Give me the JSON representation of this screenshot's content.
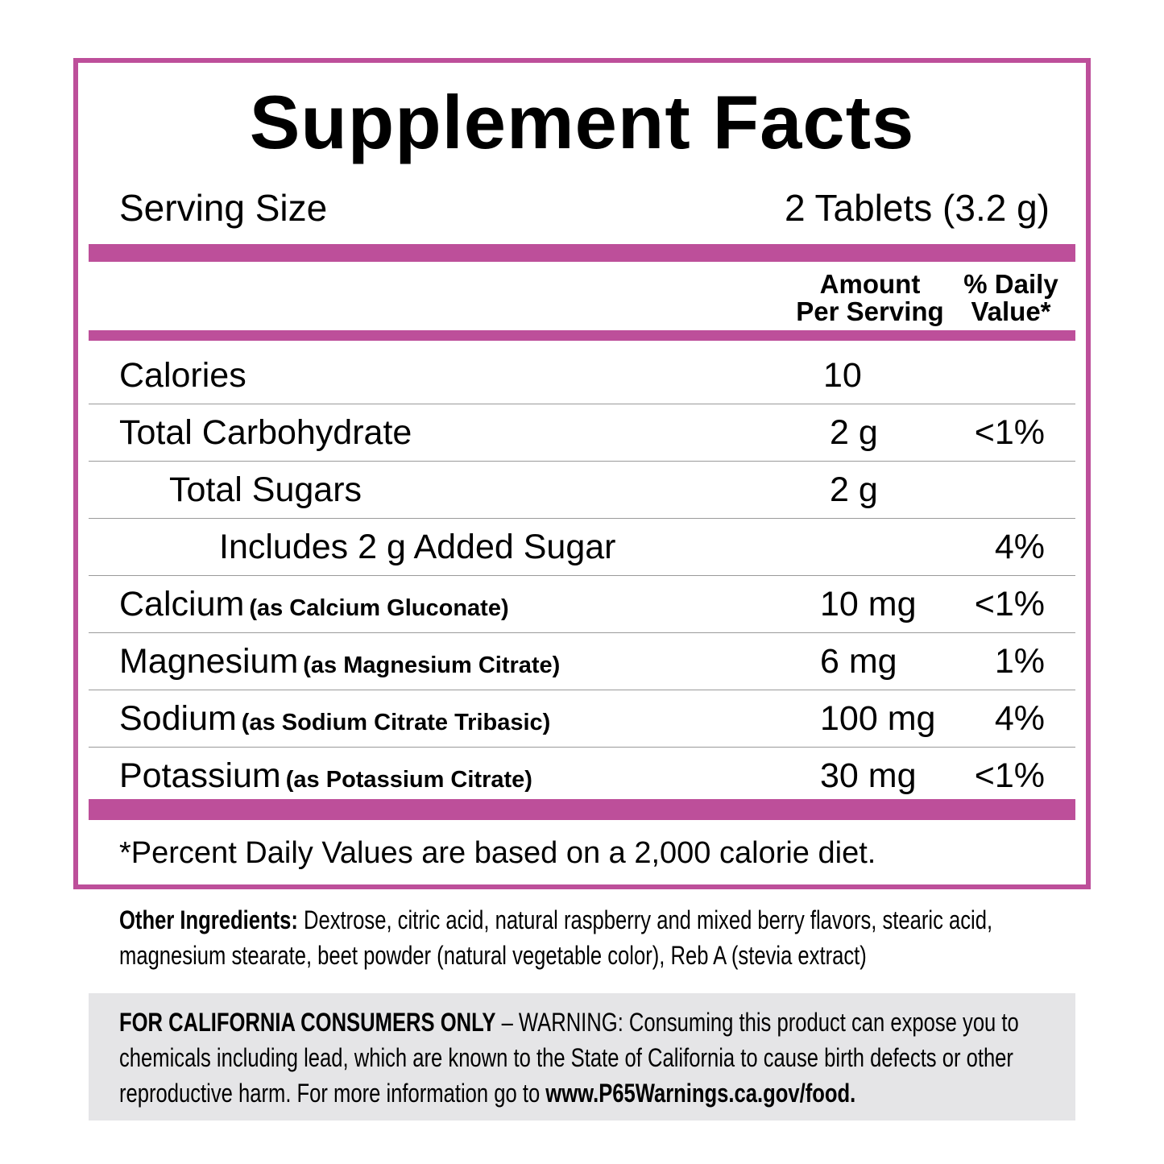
{
  "title": "Supplement Facts",
  "serving_size": {
    "label": "Serving Size",
    "value": "2 Tablets (3.2 g)"
  },
  "columns": {
    "amount_line1": "Amount",
    "amount_line2": "Per Serving",
    "dv_line1": "% Daily",
    "dv_line2": "Value*"
  },
  "rows": [
    {
      "name": "Calories",
      "note": "",
      "amount": "10",
      "dv": ""
    },
    {
      "name": "Total Carbohydrate",
      "note": "",
      "amount": "2 g",
      "dv": "<1%"
    },
    {
      "name": "Total Sugars",
      "note": "",
      "amount": "2 g",
      "dv": ""
    },
    {
      "name": "Includes 2 g Added Sugar",
      "note": "",
      "amount": "",
      "dv": "4%"
    },
    {
      "name": "Calcium",
      "note": "(as Calcium Gluconate)",
      "amount": "10 mg",
      "dv": "<1%"
    },
    {
      "name": "Magnesium",
      "note": "(as Magnesium Citrate)",
      "amount": "6 mg",
      "dv": "1%"
    },
    {
      "name": "Sodium",
      "note": "(as Sodium Citrate Tribasic)",
      "amount": "100 mg",
      "dv": "4%"
    },
    {
      "name": "Potassium",
      "note": "(as Potassium Citrate)",
      "amount": "30 mg",
      "dv": "<1%"
    }
  ],
  "footnote": "*Percent Daily Values are based on a 2,000 calorie diet.",
  "other_ingredients": {
    "label": "Other Ingredients:",
    "text": " Dextrose, citric acid, natural raspberry and mixed berry flavors, stearic acid, magnesium stearate, beet powder (natural vegetable color), Reb A (stevia extract)"
  },
  "warning": {
    "label": "FOR CALIFORNIA CONSUMERS ONLY",
    "text": " – WARNING: Consuming this product can expose you to chemicals including lead, which are known to the State of California to cause birth defects or other reproductive harm. For more information go to ",
    "link": "www.P65Warnings.ca.gov/food."
  },
  "colors": {
    "accent": "#bd4f9a",
    "warning_bg": "#e5e5e7"
  }
}
